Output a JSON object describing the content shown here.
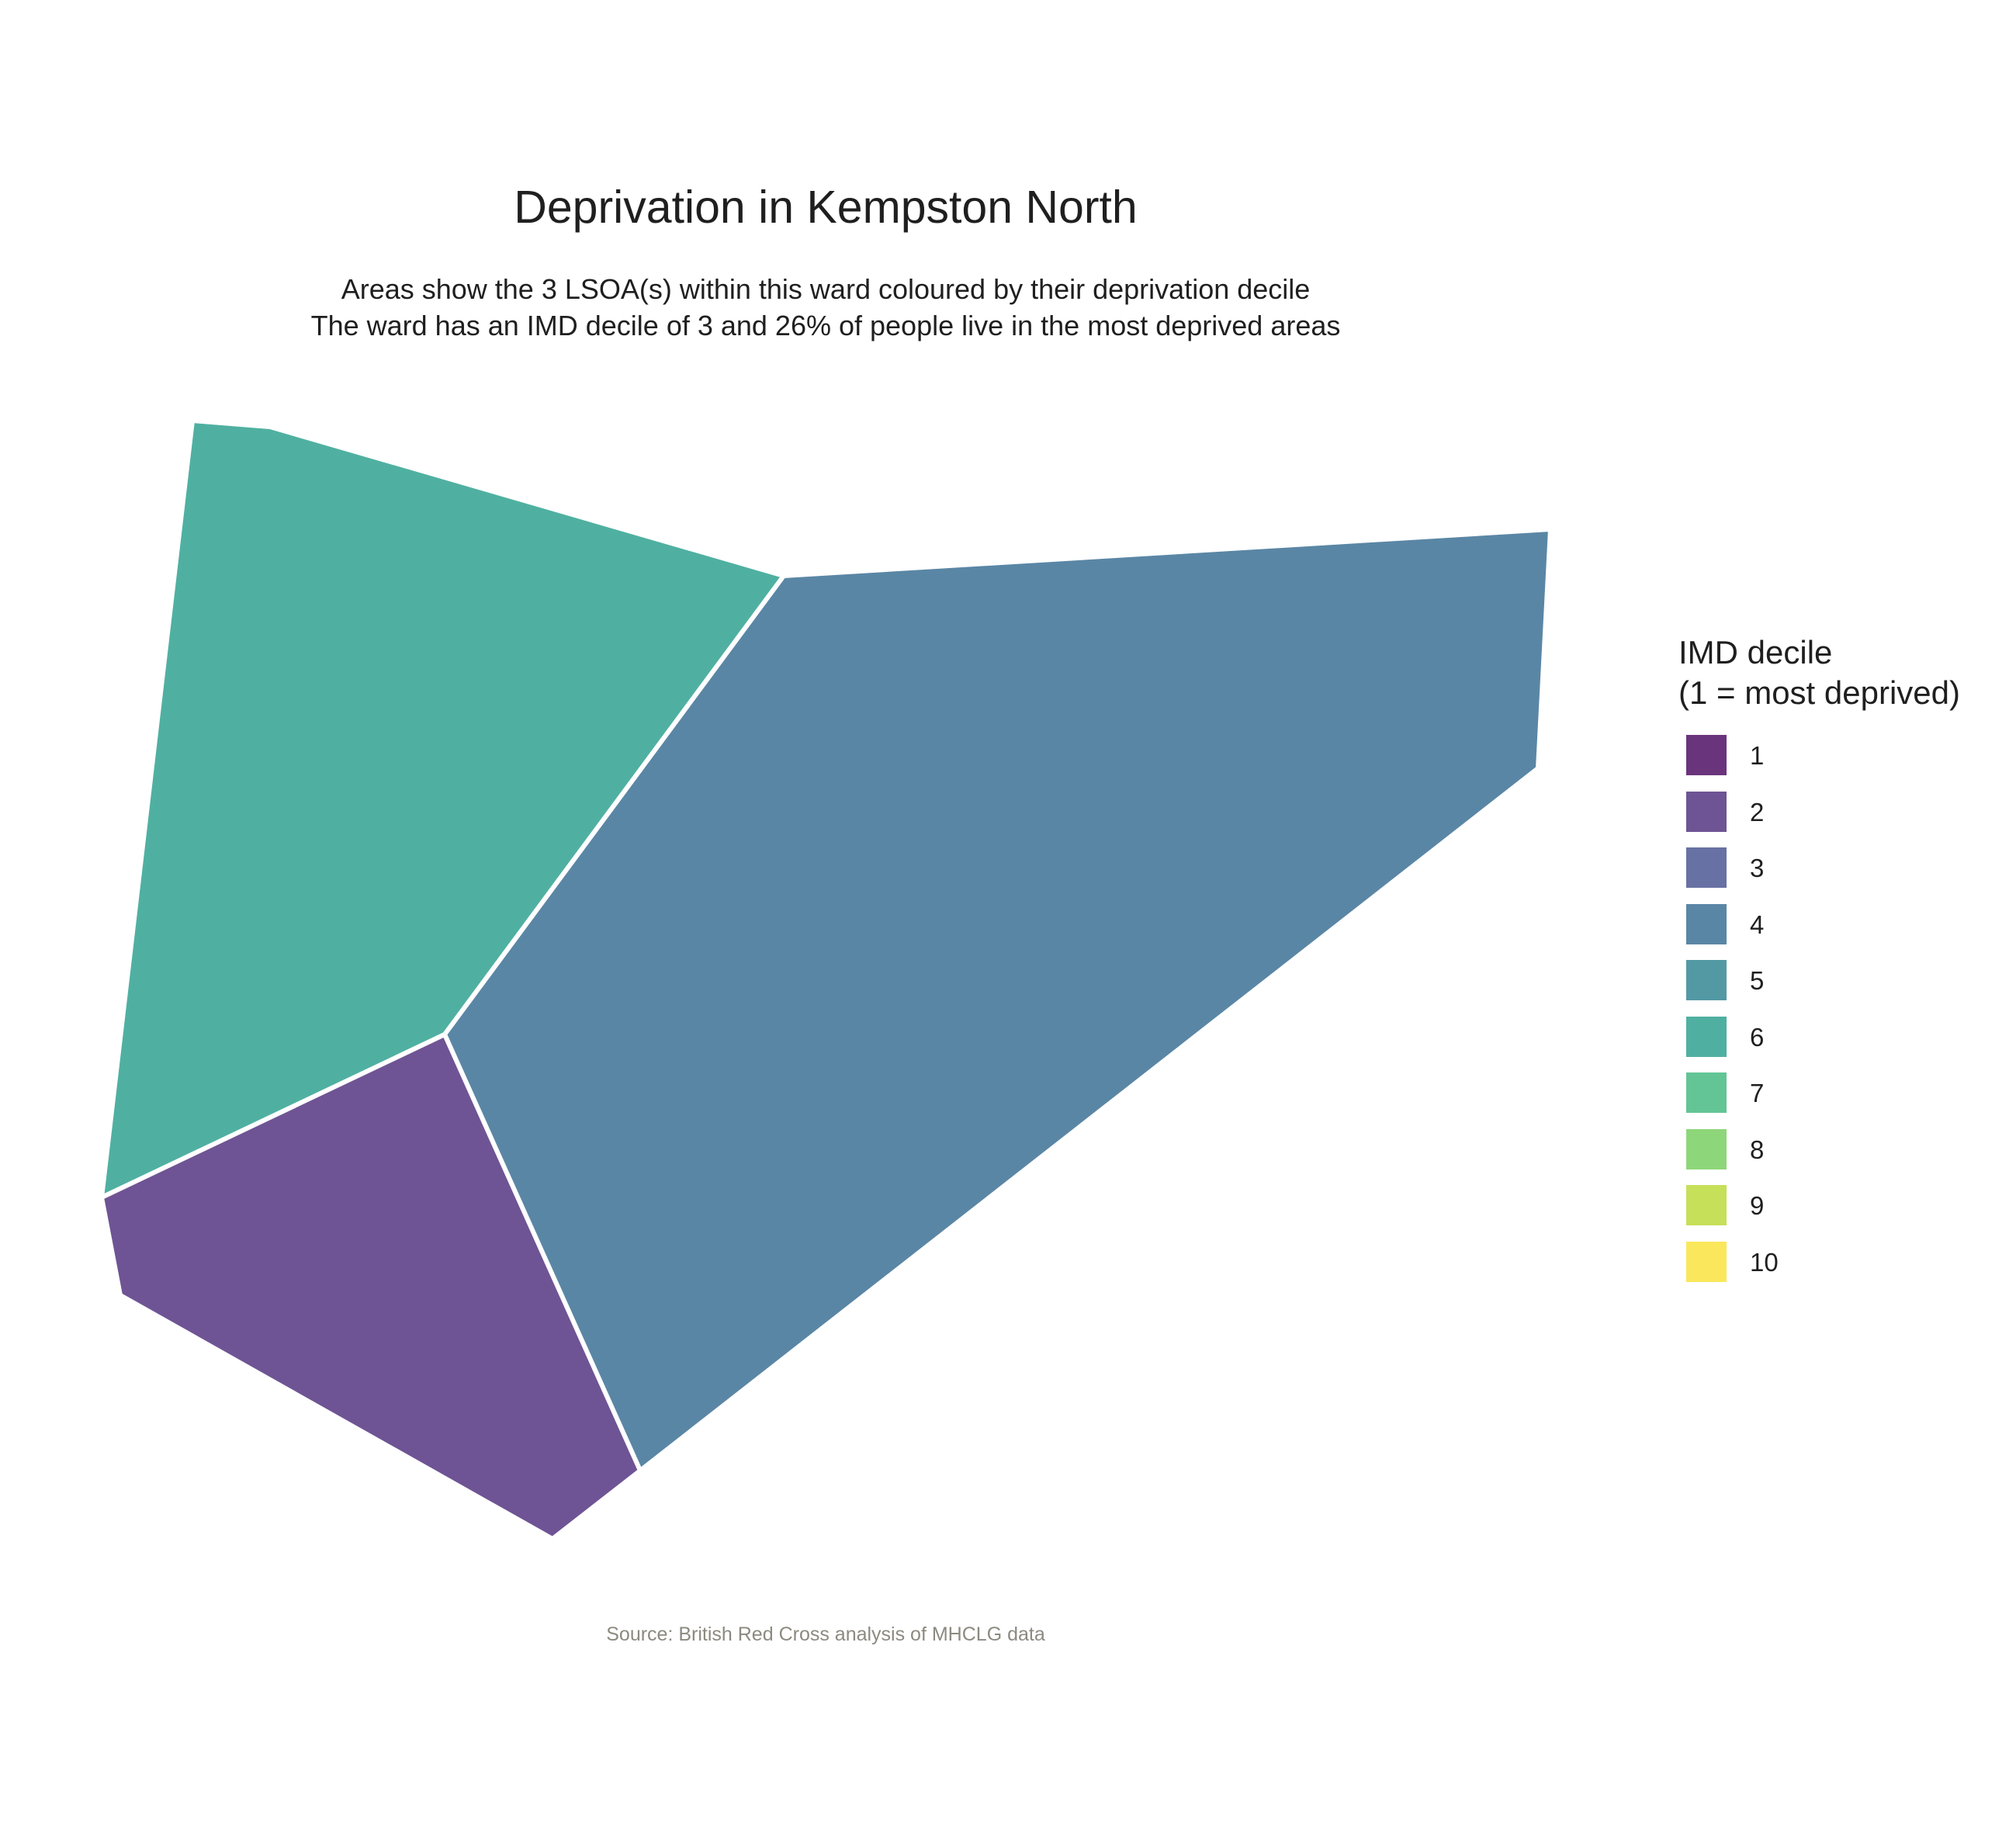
{
  "title": "Deprivation in Kempston North",
  "subtitle_line1": "Areas show the 3 LSOA(s) within this ward coloured by their deprivation decile",
  "subtitle_line2": "The ward has an IMD decile of 3 and 26% of people live in the most deprived areas",
  "caption": "Source: British Red Cross analysis of MHCLG data",
  "legend": {
    "title_line1": "IMD decile",
    "title_line2": "(1 = most deprived)",
    "items": [
      {
        "label": "1",
        "color": "#6a347c"
      },
      {
        "label": "2",
        "color": "#6e5494"
      },
      {
        "label": "3",
        "color": "#6871a3"
      },
      {
        "label": "4",
        "color": "#5a86a5"
      },
      {
        "label": "5",
        "color": "#5399a4"
      },
      {
        "label": "6",
        "color": "#4fb0a1"
      },
      {
        "label": "7",
        "color": "#63c596"
      },
      {
        "label": "8",
        "color": "#8ed67a"
      },
      {
        "label": "9",
        "color": "#c6e05a"
      },
      {
        "label": "10",
        "color": "#fbe75b"
      }
    ]
  },
  "map": {
    "areas": [
      {
        "name": "lsoa-north-west",
        "decile": 6,
        "color": "#4fb0a1"
      },
      {
        "name": "lsoa-east",
        "decile": 4,
        "color": "#5a86a5"
      },
      {
        "name": "lsoa-south-west",
        "decile": 2,
        "color": "#6e5494"
      }
    ],
    "border_color": "#ffffff"
  }
}
